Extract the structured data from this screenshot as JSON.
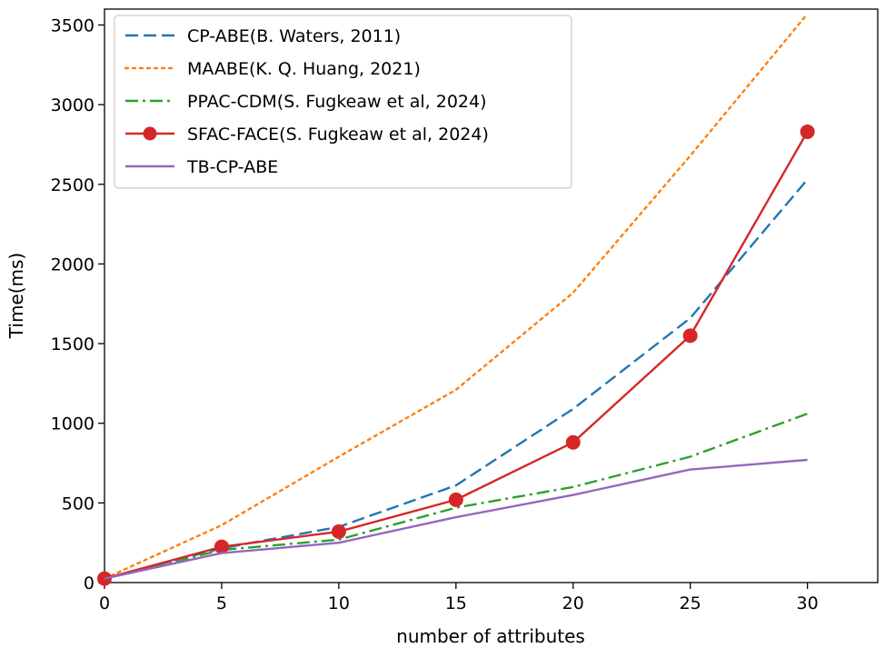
{
  "chart_data": {
    "type": "line",
    "title": "",
    "xlabel": "number of attributes",
    "ylabel": "Time(ms)",
    "xlim": [
      0,
      33
    ],
    "ylim": [
      0,
      3600
    ],
    "xticks": [
      0,
      5,
      10,
      15,
      20,
      25,
      30
    ],
    "yticks": [
      0,
      500,
      1000,
      1500,
      2000,
      2500,
      3000,
      3500
    ],
    "grid": false,
    "legend": "top-left",
    "x": [
      0,
      5,
      10,
      15,
      20,
      25,
      30
    ],
    "series": [
      {
        "name": "CP-ABE(B. Waters, 2011)",
        "values": [
          25,
          215,
          350,
          610,
          1090,
          1660,
          2530
        ],
        "color": "#1f77b4",
        "dash": "dashed",
        "marker": "none"
      },
      {
        "name": "MAABE(K. Q. Huang, 2021)",
        "values": [
          25,
          360,
          790,
          1210,
          1820,
          2680,
          3570
        ],
        "color": "#ff7f0e",
        "dash": "dotted",
        "marker": "none"
      },
      {
        "name": "PPAC-CDM(S. Fugkeaw et al, 2024)",
        "values": [
          25,
          205,
          270,
          470,
          600,
          790,
          1060
        ],
        "color": "#2ca02c",
        "dash": "dashdot",
        "marker": "none"
      },
      {
        "name": "SFAC-FACE(S. Fugkeaw et al, 2024)",
        "values": [
          25,
          225,
          320,
          520,
          880,
          1550,
          2830
        ],
        "color": "#d62728",
        "dash": "solid",
        "marker": "circle"
      },
      {
        "name": "TB-CP-ABE",
        "values": [
          25,
          185,
          250,
          410,
          550,
          710,
          770
        ],
        "color": "#9467bd",
        "dash": "solid",
        "marker": "none"
      }
    ]
  }
}
